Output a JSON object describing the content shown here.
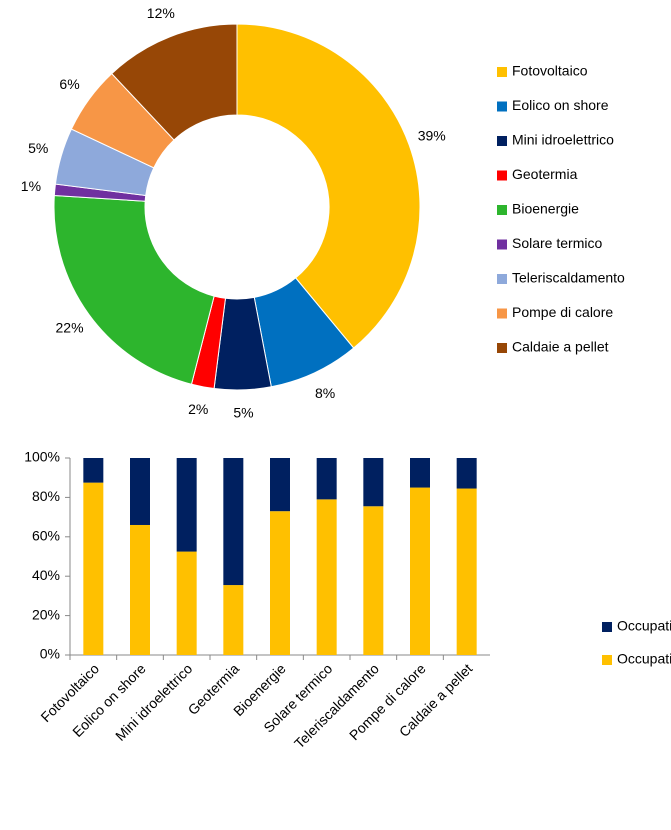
{
  "chart_data": [
    {
      "type": "donut",
      "categories": [
        "Fotovoltaico",
        "Eolico on shore",
        "Mini idroelettrico",
        "Geotermia",
        "Bioenergie",
        "Solare termico",
        "Teleriscaldamento",
        "Pompe di calore",
        "Caldaie a pellet"
      ],
      "values": [
        39,
        8,
        5,
        2,
        22,
        1,
        5,
        6,
        12
      ],
      "value_labels": [
        "39%",
        "8%",
        "5%",
        "2%",
        "22%",
        "1%",
        "5%",
        "6%",
        "12%"
      ],
      "colors": [
        "#FFC000",
        "#0070C0",
        "#002060",
        "#FF0000",
        "#2DB52D",
        "#7030A0",
        "#8EA9DB",
        "#F79646",
        "#974706"
      ],
      "legend": "right"
    },
    {
      "type": "stacked_bar",
      "categories": [
        "Fotovoltaico",
        "Eolico on shore",
        "Mini idroelettrico",
        "Geotermia",
        "Bioenergie",
        "Solare termico",
        "Teleriscaldamento",
        "Pompe di calore",
        "Caldaie a pellet"
      ],
      "series": [
        {
          "name": "Occupati diretti",
          "color": "#FFC000",
          "values": [
            87.5,
            66,
            52.5,
            35.5,
            73,
            79,
            75.5,
            85,
            84.5
          ]
        },
        {
          "name": "Occupati indiretti",
          "color": "#002060",
          "values": [
            12.5,
            34,
            47.5,
            64.5,
            27,
            21,
            24.5,
            15,
            15.5
          ]
        }
      ],
      "ylim": [
        0,
        100
      ],
      "yticks": [
        {
          "value": 0,
          "label": "0%"
        },
        {
          "value": 20,
          "label": "20%"
        },
        {
          "value": 40,
          "label": "40%"
        },
        {
          "value": 60,
          "label": "60%"
        },
        {
          "value": 80,
          "label": "80%"
        },
        {
          "value": 100,
          "label": "100%"
        }
      ],
      "legend": "right"
    }
  ]
}
